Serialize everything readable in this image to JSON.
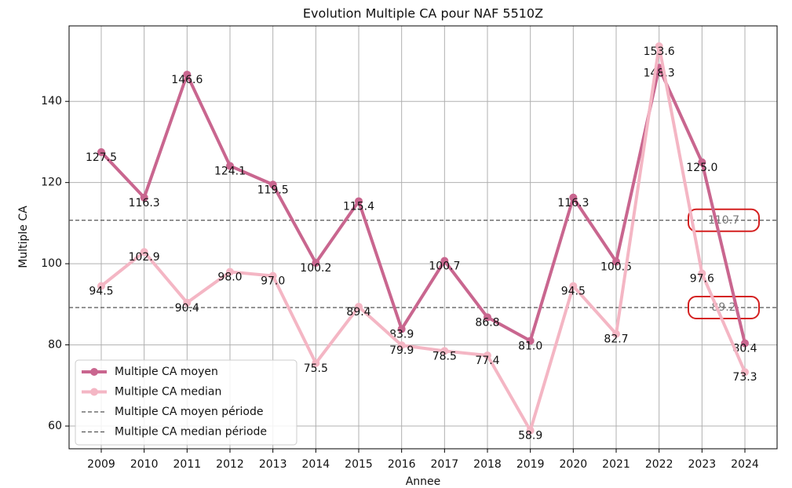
{
  "chart_data": {
    "type": "line",
    "title": "Evolution Multiple CA pour NAF 5510Z",
    "xlabel": "Annee",
    "ylabel": "Multiple CA",
    "x": [
      2009,
      2010,
      2011,
      2012,
      2013,
      2014,
      2015,
      2016,
      2017,
      2018,
      2019,
      2020,
      2021,
      2022,
      2023,
      2024
    ],
    "xlim": [
      2008.25,
      2024.75
    ],
    "xticks": [
      2009,
      2010,
      2011,
      2012,
      2013,
      2014,
      2015,
      2016,
      2017,
      2018,
      2019,
      2020,
      2021,
      2022,
      2023,
      2024
    ],
    "ylim": [
      54.4,
      158.6
    ],
    "yticks": [
      60,
      80,
      100,
      120,
      140
    ],
    "grid": true,
    "legend": "lower left",
    "series": [
      {
        "name": "Multiple CA moyen",
        "color": "#c9668f",
        "values": [
          127.5,
          116.3,
          146.6,
          124.1,
          119.5,
          100.2,
          115.4,
          83.9,
          100.7,
          86.8,
          81.0,
          116.3,
          100.5,
          148.3,
          125.0,
          80.4
        ],
        "value_labels": [
          "127.5",
          "116.3",
          "146.6",
          "124.1",
          "119.5",
          "100.2",
          "115.4",
          "83.9",
          "100.7",
          "86.8",
          "81.0",
          "116.3",
          "100.5",
          "148.3",
          "125.0",
          "80.4"
        ]
      },
      {
        "name": "Multiple CA median",
        "color": "#f4b6c4",
        "values": [
          94.5,
          102.9,
          90.4,
          98.0,
          97.0,
          75.5,
          89.4,
          79.9,
          78.5,
          77.4,
          58.9,
          94.5,
          82.7,
          153.6,
          97.6,
          73.3
        ],
        "value_labels": [
          "94.5",
          "102.9",
          "90.4",
          "98.0",
          "97.0",
          "75.5",
          "89.4",
          "79.9",
          "78.5",
          "77.4",
          "58.9",
          "94.5",
          "82.7",
          "153.6",
          "97.6",
          "73.3"
        ]
      }
    ],
    "hlines": [
      {
        "name": "Multiple CA moyen période",
        "value": 110.7,
        "color": "#555555"
      },
      {
        "name": "Multiple CA median période",
        "value": 89.2,
        "color": "#555555"
      }
    ]
  }
}
